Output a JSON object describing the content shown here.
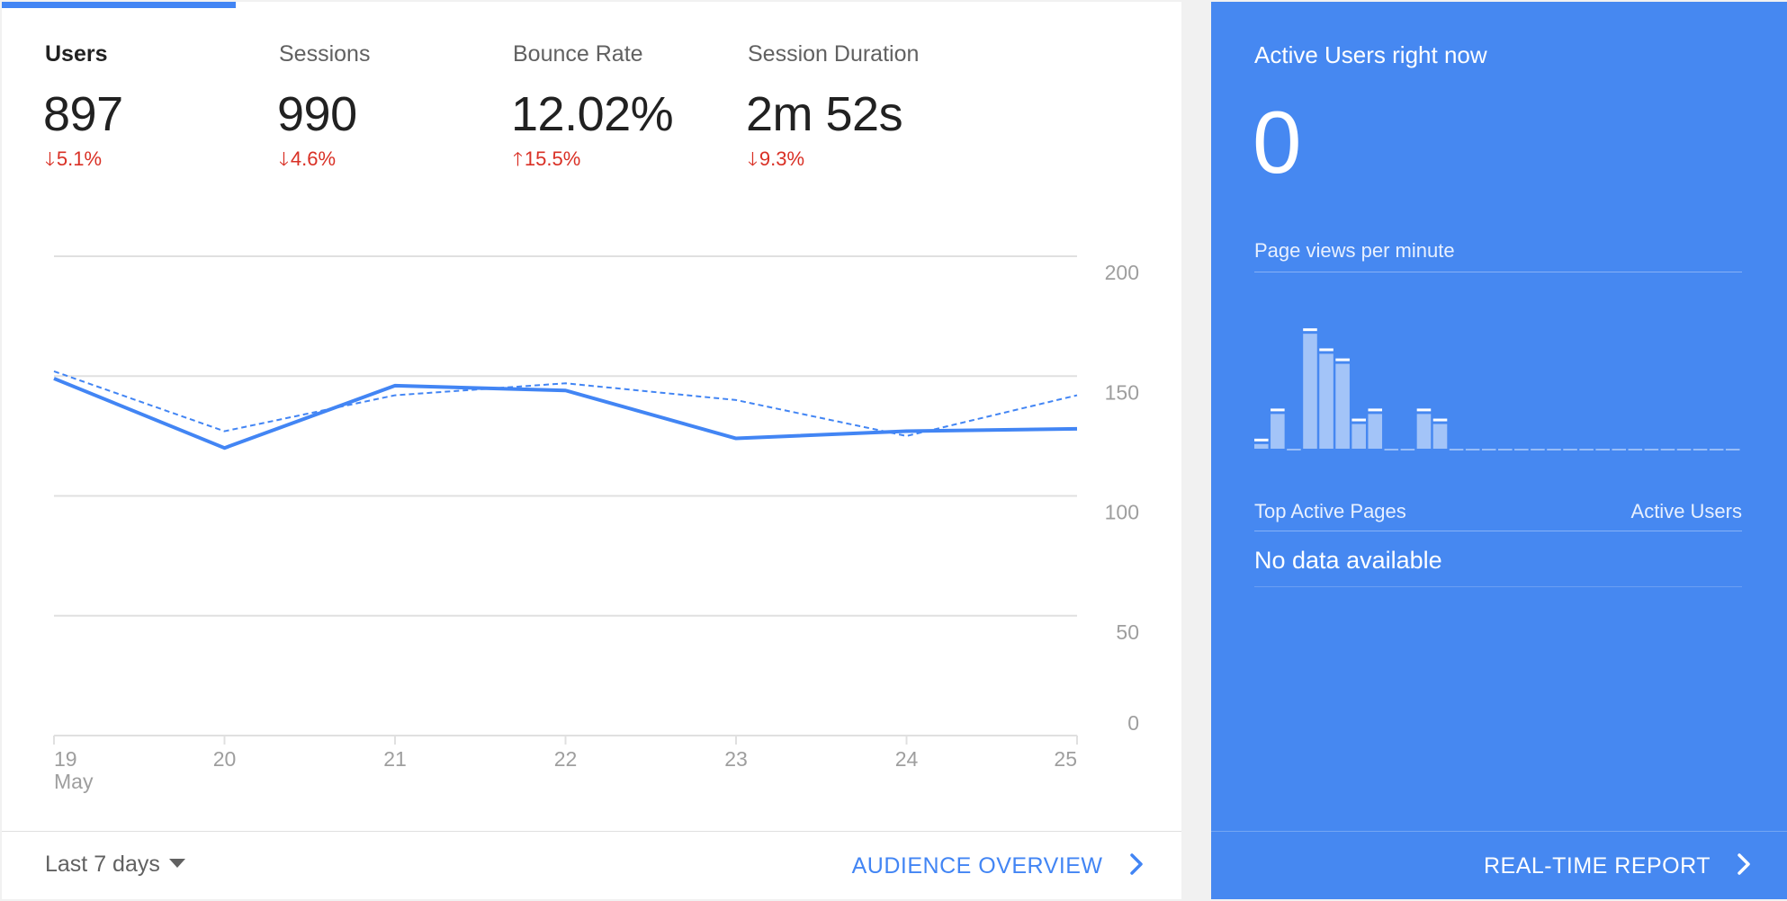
{
  "metrics": [
    {
      "label": "Users",
      "value": "897",
      "change": "5.1%",
      "direction": "down",
      "active": true
    },
    {
      "label": "Sessions",
      "value": "990",
      "change": "4.6%",
      "direction": "down",
      "active": false
    },
    {
      "label": "Bounce Rate",
      "value": "12.02%",
      "change": "15.5%",
      "direction": "up",
      "active": false
    },
    {
      "label": "Session Duration",
      "value": "2m 52s",
      "change": "9.3%",
      "direction": "down",
      "active": false
    }
  ],
  "chart_data": {
    "type": "line",
    "x": [
      "19",
      "20",
      "21",
      "22",
      "23",
      "24",
      "25"
    ],
    "x_month_label": "May",
    "series": [
      {
        "style": "solid",
        "values": [
          149,
          120,
          146,
          144,
          124,
          127,
          128
        ]
      },
      {
        "style": "dashed",
        "values": [
          152,
          127,
          142,
          147,
          140,
          125,
          142
        ]
      }
    ],
    "y_ticks": [
      "200",
      "150",
      "100",
      "50",
      "0"
    ],
    "ylim": [
      0,
      200
    ],
    "grid": true,
    "colors": {
      "line": "#4285f4",
      "grid": "#e0e0e0",
      "tick": "#9e9e9e"
    }
  },
  "footer": {
    "date_range": "Last 7 days",
    "audience_link": "AUDIENCE OVERVIEW"
  },
  "realtime": {
    "title": "Active Users right now",
    "count": "0",
    "pageviews_label": "Page views per minute",
    "pageviews_per_minute": [
      1,
      4,
      0,
      12,
      10,
      9,
      3,
      4,
      0,
      0,
      4,
      3,
      0,
      0,
      0,
      0,
      0,
      0,
      0,
      0,
      0,
      0,
      0,
      0,
      0,
      0,
      0,
      0,
      0,
      0
    ],
    "top_pages_label": "Top Active Pages",
    "active_users_label": "Active Users",
    "no_data": "No data available",
    "report_link": "REAL-TIME REPORT"
  },
  "colors": {
    "accent": "#4285f4",
    "panel_bg": "#4688f1",
    "negative": "#d93025"
  }
}
